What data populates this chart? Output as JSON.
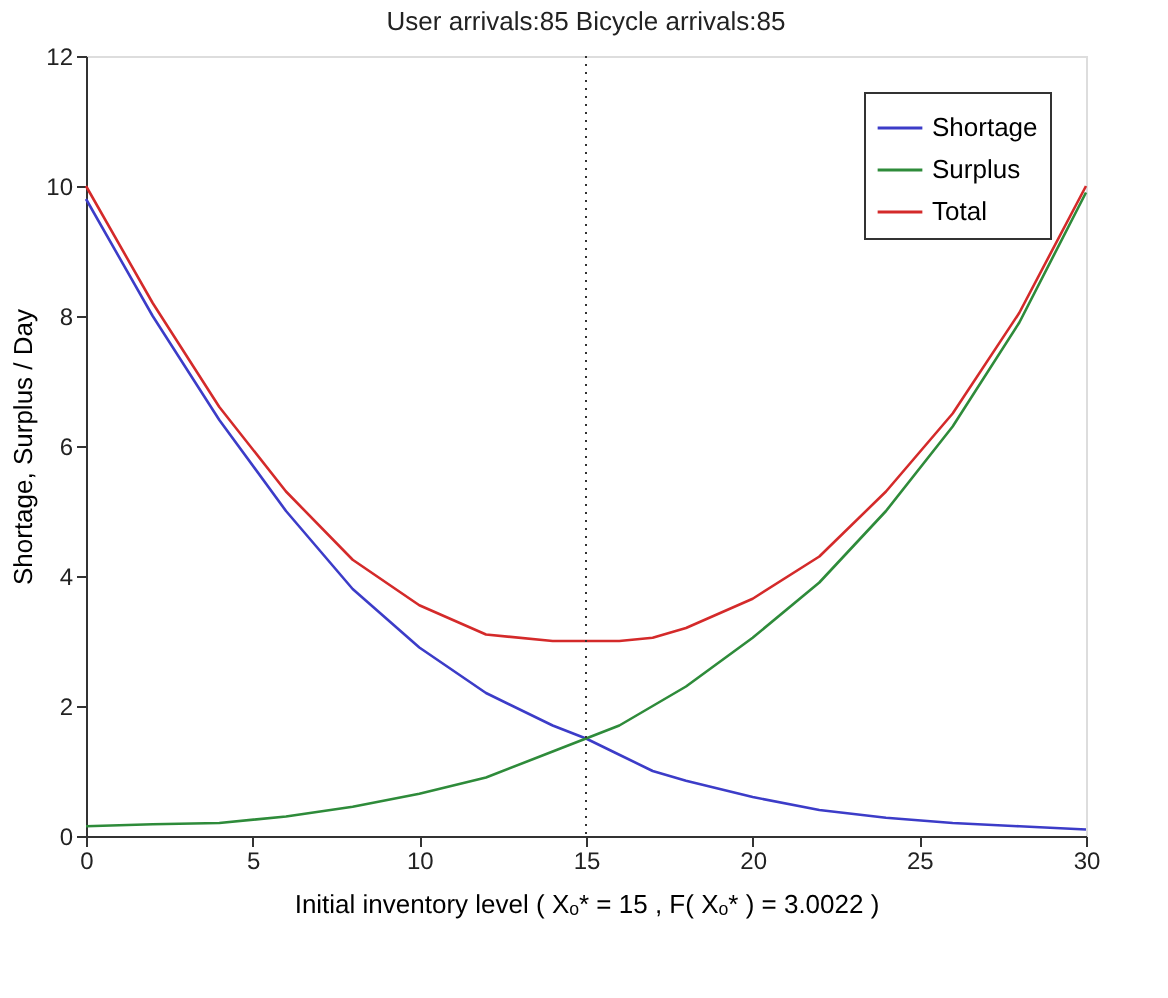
{
  "chart_data": {
    "type": "line",
    "title": "User arrivals:85     Bicycle arrivals:85",
    "xlabel": "Initial inventory level ( Xₒ* = 15 , F( Xₒ* ) = 3.0022 )",
    "ylabel": "Shortage, Surplus / Day",
    "x": [
      0,
      2,
      4,
      6,
      8,
      10,
      12,
      14,
      15,
      16,
      17,
      18,
      20,
      22,
      24,
      26,
      28,
      30
    ],
    "series": [
      {
        "name": "Shortage",
        "color": "#3c3cc8",
        "values": [
          9.8,
          8.0,
          6.4,
          5.0,
          3.8,
          2.9,
          2.2,
          1.7,
          1.5,
          1.25,
          1.0,
          0.85,
          0.6,
          0.4,
          0.28,
          0.2,
          0.15,
          0.1
        ]
      },
      {
        "name": "Surplus",
        "color": "#2e8b3a",
        "values": [
          0.15,
          0.18,
          0.2,
          0.3,
          0.45,
          0.65,
          0.9,
          1.3,
          1.5,
          1.7,
          2.0,
          2.3,
          3.05,
          3.9,
          5.0,
          6.3,
          7.9,
          9.9
        ]
      },
      {
        "name": "Total",
        "color": "#d42a2a",
        "values": [
          10.0,
          8.2,
          6.6,
          5.3,
          4.25,
          3.55,
          3.1,
          3.0,
          3.0,
          3.0,
          3.05,
          3.2,
          3.65,
          4.3,
          5.3,
          6.5,
          8.05,
          10.0
        ]
      }
    ],
    "xlim": [
      0,
      30
    ],
    "xticks": [
      0,
      5,
      10,
      15,
      20,
      25,
      30
    ],
    "ylim": [
      0,
      12
    ],
    "yticks": [
      0,
      2,
      4,
      6,
      8,
      10,
      12
    ],
    "ref_lines": [
      {
        "axis": "x",
        "value": 15,
        "color": "#333333",
        "line_style": "dotted"
      }
    ],
    "grid": false,
    "legend": "top right",
    "marker": "none",
    "line_style": "solid"
  }
}
